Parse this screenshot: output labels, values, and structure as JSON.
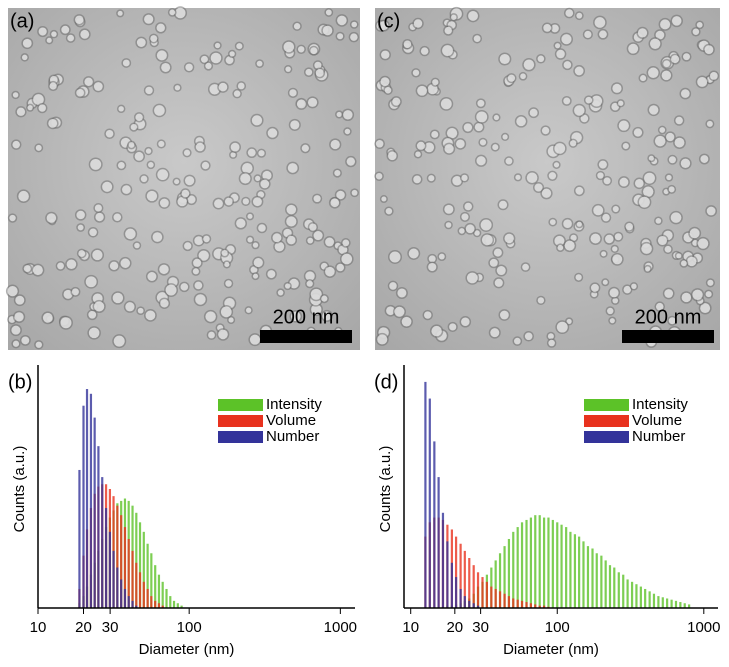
{
  "images": [
    {
      "label": "(a)",
      "scale_bar": "200 nm"
    },
    {
      "label": "(c)",
      "scale_bar": "200 nm"
    }
  ],
  "chart_data": [
    {
      "type": "bar",
      "panel_label": "(b)",
      "x_label": "Diameter (nm)",
      "y_label": "Counts (a.u.)",
      "xscale": "log",
      "xlim": [
        10,
        1250
      ],
      "ylim": [
        0,
        100
      ],
      "xticks": [
        10,
        20,
        30,
        100,
        1000
      ],
      "legend": "upper right",
      "x": [
        17.8,
        18.8,
        20.0,
        21.1,
        22.4,
        23.7,
        25.1,
        26.6,
        28.2,
        29.9,
        31.6,
        33.5,
        35.5,
        37.6,
        39.8,
        42.2,
        44.7,
        47.3,
        50.1,
        53.1,
        56.2,
        59.6,
        63.1,
        66.8,
        70.8,
        75.0,
        79.4,
        84.1,
        89.1
      ],
      "series": [
        {
          "name": "Intensity",
          "color": "#5cc228",
          "values": [
            0,
            2,
            5,
            9,
            14,
            19,
            24,
            29,
            34,
            38,
            41,
            44,
            45,
            46,
            45,
            43,
            40,
            36,
            32,
            27,
            23,
            18,
            14,
            11,
            8,
            5,
            3,
            2,
            1
          ]
        },
        {
          "name": "Volume",
          "color": "#e8321e",
          "values": [
            0,
            8,
            22,
            33,
            42,
            48,
            51,
            52,
            52,
            50,
            47,
            43,
            39,
            34,
            29,
            24,
            19,
            15,
            11,
            8,
            5,
            3,
            2,
            1,
            0,
            0,
            0,
            0,
            0
          ]
        },
        {
          "name": "Number",
          "color": "#33339a",
          "values": [
            0,
            58,
            85,
            92,
            90,
            80,
            68,
            55,
            42,
            32,
            24,
            17,
            12,
            8,
            5,
            3,
            1,
            0,
            0,
            0,
            0,
            0,
            0,
            0,
            0,
            0,
            0,
            0,
            0
          ]
        }
      ]
    },
    {
      "type": "bar",
      "panel_label": "(d)",
      "x_label": "Diameter (nm)",
      "y_label": "Counts (a.u.)",
      "xscale": "log",
      "xlim": [
        9,
        1250
      ],
      "ylim": [
        0,
        100
      ],
      "xticks": [
        10,
        20,
        30,
        100,
        1000
      ],
      "legend": "upper right",
      "x": [
        12.6,
        13.5,
        14.5,
        15.5,
        16.6,
        17.8,
        19.1,
        20.4,
        21.9,
        23.4,
        25.1,
        26.9,
        28.8,
        30.9,
        33.1,
        35.5,
        38.0,
        40.7,
        43.7,
        46.8,
        50.1,
        53.7,
        57.5,
        61.7,
        66.1,
        70.8,
        75.9,
        81.3,
        87.1,
        93.3,
        100,
        107,
        115,
        123,
        132,
        141,
        151,
        162,
        174,
        186,
        200,
        214,
        229,
        245,
        263,
        282,
        302,
        324,
        347,
        372,
        398,
        427,
        457,
        490,
        525,
        562,
        603,
        646,
        692,
        741,
        794
      ],
      "series": [
        {
          "name": "Intensity",
          "color": "#5cc228",
          "values": [
            0,
            0,
            0,
            0,
            0.5,
            1,
            1,
            1.5,
            2,
            3,
            4,
            6,
            9,
            11,
            14,
            17,
            20,
            23,
            26,
            29,
            32,
            34,
            36,
            37,
            38,
            39,
            39,
            38,
            38,
            37,
            36,
            35,
            34,
            32,
            31,
            30,
            28,
            26,
            25,
            23,
            22,
            20,
            18,
            17,
            15,
            14,
            12,
            11,
            10,
            9,
            8,
            7,
            6,
            5,
            4.5,
            4,
            3.5,
            3,
            2.5,
            2,
            1.5
          ]
        },
        {
          "name": "Volume",
          "color": "#e8321e",
          "values": [
            30,
            36,
            38,
            38,
            37,
            35,
            33,
            30,
            27,
            24,
            21,
            18,
            15,
            13,
            11,
            9,
            8,
            7,
            6,
            5,
            4,
            3.5,
            3,
            2.5,
            2,
            1.5,
            1,
            1,
            0.5,
            0,
            0,
            0,
            0,
            0,
            0,
            0,
            0,
            0,
            0,
            0,
            0,
            0,
            0,
            0,
            0,
            0,
            0,
            0,
            0,
            0,
            0,
            0,
            0,
            0,
            0,
            0,
            0,
            0,
            0,
            0,
            0
          ]
        },
        {
          "name": "Number",
          "color": "#33339a",
          "values": [
            95,
            88,
            70,
            55,
            40,
            28,
            19,
            13,
            8,
            5,
            3,
            2,
            1,
            0,
            0,
            0,
            0,
            0,
            0,
            0,
            0,
            0,
            0,
            0,
            0,
            0,
            0,
            0,
            0,
            0,
            0,
            0,
            0,
            0,
            0,
            0,
            0,
            0,
            0,
            0,
            0,
            0,
            0,
            0,
            0,
            0,
            0,
            0,
            0,
            0,
            0,
            0,
            0,
            0,
            0,
            0,
            0,
            0,
            0,
            0,
            0
          ]
        }
      ]
    }
  ]
}
